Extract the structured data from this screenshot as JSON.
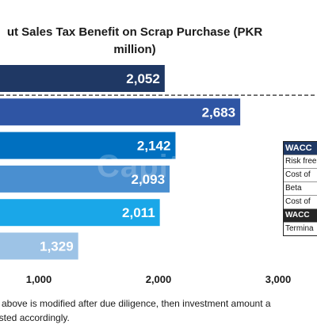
{
  "chart_data": {
    "type": "bar",
    "orientation": "horizontal",
    "title": "ut Sales Tax Benefit on Scrap Purchase (PKR million)",
    "values": [
      2052,
      2683,
      2142,
      2093,
      2011,
      1329
    ],
    "data_labels": [
      "2,052",
      "2,683",
      "2,142",
      "2,093",
      "2,011",
      "1,329"
    ],
    "bar_colors": [
      "#1f3864",
      "#2f55a4",
      "#0070c0",
      "#4a8fd0",
      "#1aa7e8",
      "#9dc3e6"
    ],
    "xlim": [
      0,
      3000
    ],
    "xticks": [
      1000,
      2000,
      3000
    ],
    "xtick_labels": [
      "1,000",
      "2,000",
      "3,000"
    ],
    "grid": false,
    "dashed_separator_after_bar": 1
  },
  "watermark": "Capit",
  "wacc_table": {
    "header": "WACC",
    "rows": [
      "Risk free",
      "Cost of",
      "Beta",
      "Cost of"
    ],
    "highlight": "WACC",
    "last": "Termina"
  },
  "footnote": {
    "line1": "n above is modified after due diligence, then investment amount a",
    "line2": "usted accordingly."
  }
}
